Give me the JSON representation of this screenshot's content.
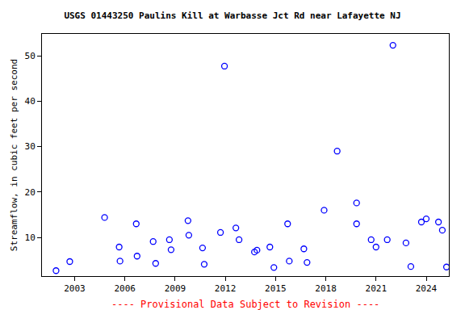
{
  "chart_data": {
    "type": "scatter",
    "title": "USGS 01443250 Paulins Kill at Warbasse Jct Rd near Lafayette NJ",
    "y_label": "Streamflow, in cubic feet per second",
    "annotations": [
      "---- Provisional Data Subject to Revision ----"
    ],
    "x": [
      2001.89,
      2002.71,
      2004.79,
      2005.66,
      2005.71,
      2006.68,
      2006.73,
      2007.69,
      2007.84,
      2008.66,
      2008.76,
      2009.77,
      2009.82,
      2010.64,
      2010.74,
      2011.71,
      2011.95,
      2012.63,
      2012.82,
      2013.74,
      2013.89,
      2014.66,
      2014.9,
      2015.72,
      2015.82,
      2016.69,
      2016.88,
      2017.9,
      2018.68,
      2019.84,
      2019.84,
      2020.71,
      2021.0,
      2021.67,
      2022.01,
      2022.79,
      2023.08,
      2023.71,
      2024.0,
      2024.73,
      2024.96,
      2025.21
    ],
    "values": [
      2.7,
      4.7,
      14.4,
      7.9,
      4.8,
      13.0,
      5.9,
      9.1,
      4.3,
      9.5,
      7.3,
      13.7,
      10.5,
      7.7,
      4.1,
      11.1,
      47.7,
      12.1,
      9.5,
      6.8,
      7.2,
      7.9,
      3.4,
      13.0,
      4.8,
      7.5,
      4.5,
      16.0,
      29.0,
      17.6,
      13.0,
      9.5,
      7.9,
      9.5,
      52.3,
      8.8,
      3.6,
      13.4,
      14.1,
      13.4,
      11.6,
      3.5
    ],
    "color": "#0000ff",
    "marker": "circle-open",
    "xlim": [
      2001.05,
      2025.35
    ],
    "xticks": [
      2003,
      2006,
      2009,
      2012,
      2015,
      2018,
      2021,
      2024
    ],
    "ylim": [
      1.5,
      54.8
    ],
    "yticks": [
      10,
      20,
      30,
      40,
      50
    ],
    "grid": false
  }
}
